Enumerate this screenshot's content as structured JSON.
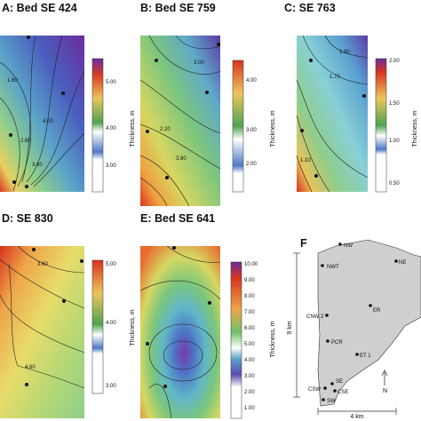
{
  "panels": [
    {
      "id": "A",
      "title": "A: Bed SE 424",
      "axis_label": "Thickness, m",
      "colorbar_ticks": [
        "5.00",
        "4.00",
        "3.00"
      ],
      "contour_labels": [
        "1.60",
        "2.60",
        "3.60",
        "4.00"
      ]
    },
    {
      "id": "B",
      "title": "B: Bed SE 759",
      "axis_label": "Thickness, m",
      "colorbar_ticks": [
        "4.00",
        "3.00",
        "2.00"
      ],
      "contour_labels": [
        "2.20",
        "3.00",
        "3.80"
      ]
    },
    {
      "id": "C",
      "title": "C: SE 763",
      "axis_label": "Thickness, m",
      "colorbar_ticks": [
        "2.00",
        "1.50",
        "1.00",
        "0.50"
      ],
      "contour_labels": [
        "1.10",
        "1.70",
        "1.90"
      ]
    },
    {
      "id": "D",
      "title": "D: SE 830",
      "axis_label": "Thickness, m",
      "colorbar_ticks": [
        "5.00",
        "4.00",
        "3.00"
      ],
      "contour_labels": [
        "3.60",
        "4.60"
      ]
    },
    {
      "id": "E",
      "title": "E: Bed SE 641",
      "axis_label": "Thickness, m",
      "colorbar_ticks": [
        "10.00",
        "9.00",
        "8.00",
        "7.00",
        "6.00",
        "5.00",
        "4.00",
        "3.00",
        "2.00",
        "1.00"
      ],
      "contour_labels": []
    }
  ],
  "map": {
    "title": "F",
    "sites": [
      "NW",
      "NE",
      "NWT",
      "ER",
      "CNW 2",
      "PCR",
      "ET 1",
      "CSW",
      "SE",
      "CSE",
      "SW"
    ],
    "vertical_scale": "9 km",
    "horizontal_scale": "4 km",
    "north_label": "N"
  },
  "colors": {
    "low": "#3a6fc2",
    "mid": "#3ea35a",
    "high": "#d8392a",
    "top": "#6e2aa0"
  }
}
